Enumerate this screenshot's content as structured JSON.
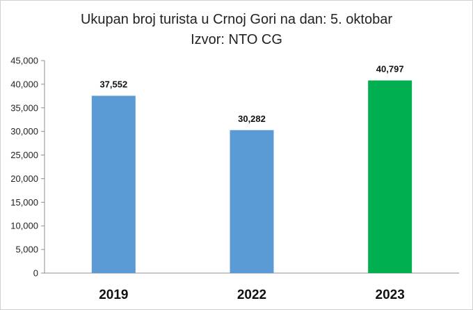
{
  "chart_data": {
    "type": "bar",
    "title": "Ukupan broj turista u Crnoj Gori na dan: 5. oktobar",
    "subtitle": "Izvor: NTO CG",
    "categories": [
      "2019",
      "2022",
      "2023"
    ],
    "values": [
      37552,
      30282,
      40797
    ],
    "data_labels": [
      "37,552",
      "30,282",
      "40,797"
    ],
    "bar_colors": [
      "#5b9bd5",
      "#5b9bd5",
      "#00b050"
    ],
    "ylim": [
      0,
      45000
    ],
    "yticks": [
      0,
      5000,
      10000,
      15000,
      20000,
      25000,
      30000,
      35000,
      40000,
      45000
    ],
    "ytick_labels": [
      "0",
      "5,000",
      "10,000",
      "15,000",
      "20,000",
      "25,000",
      "30,000",
      "35,000",
      "40,000",
      "45,000"
    ],
    "xlabel": "",
    "ylabel": "",
    "grid": false,
    "legend": false
  }
}
